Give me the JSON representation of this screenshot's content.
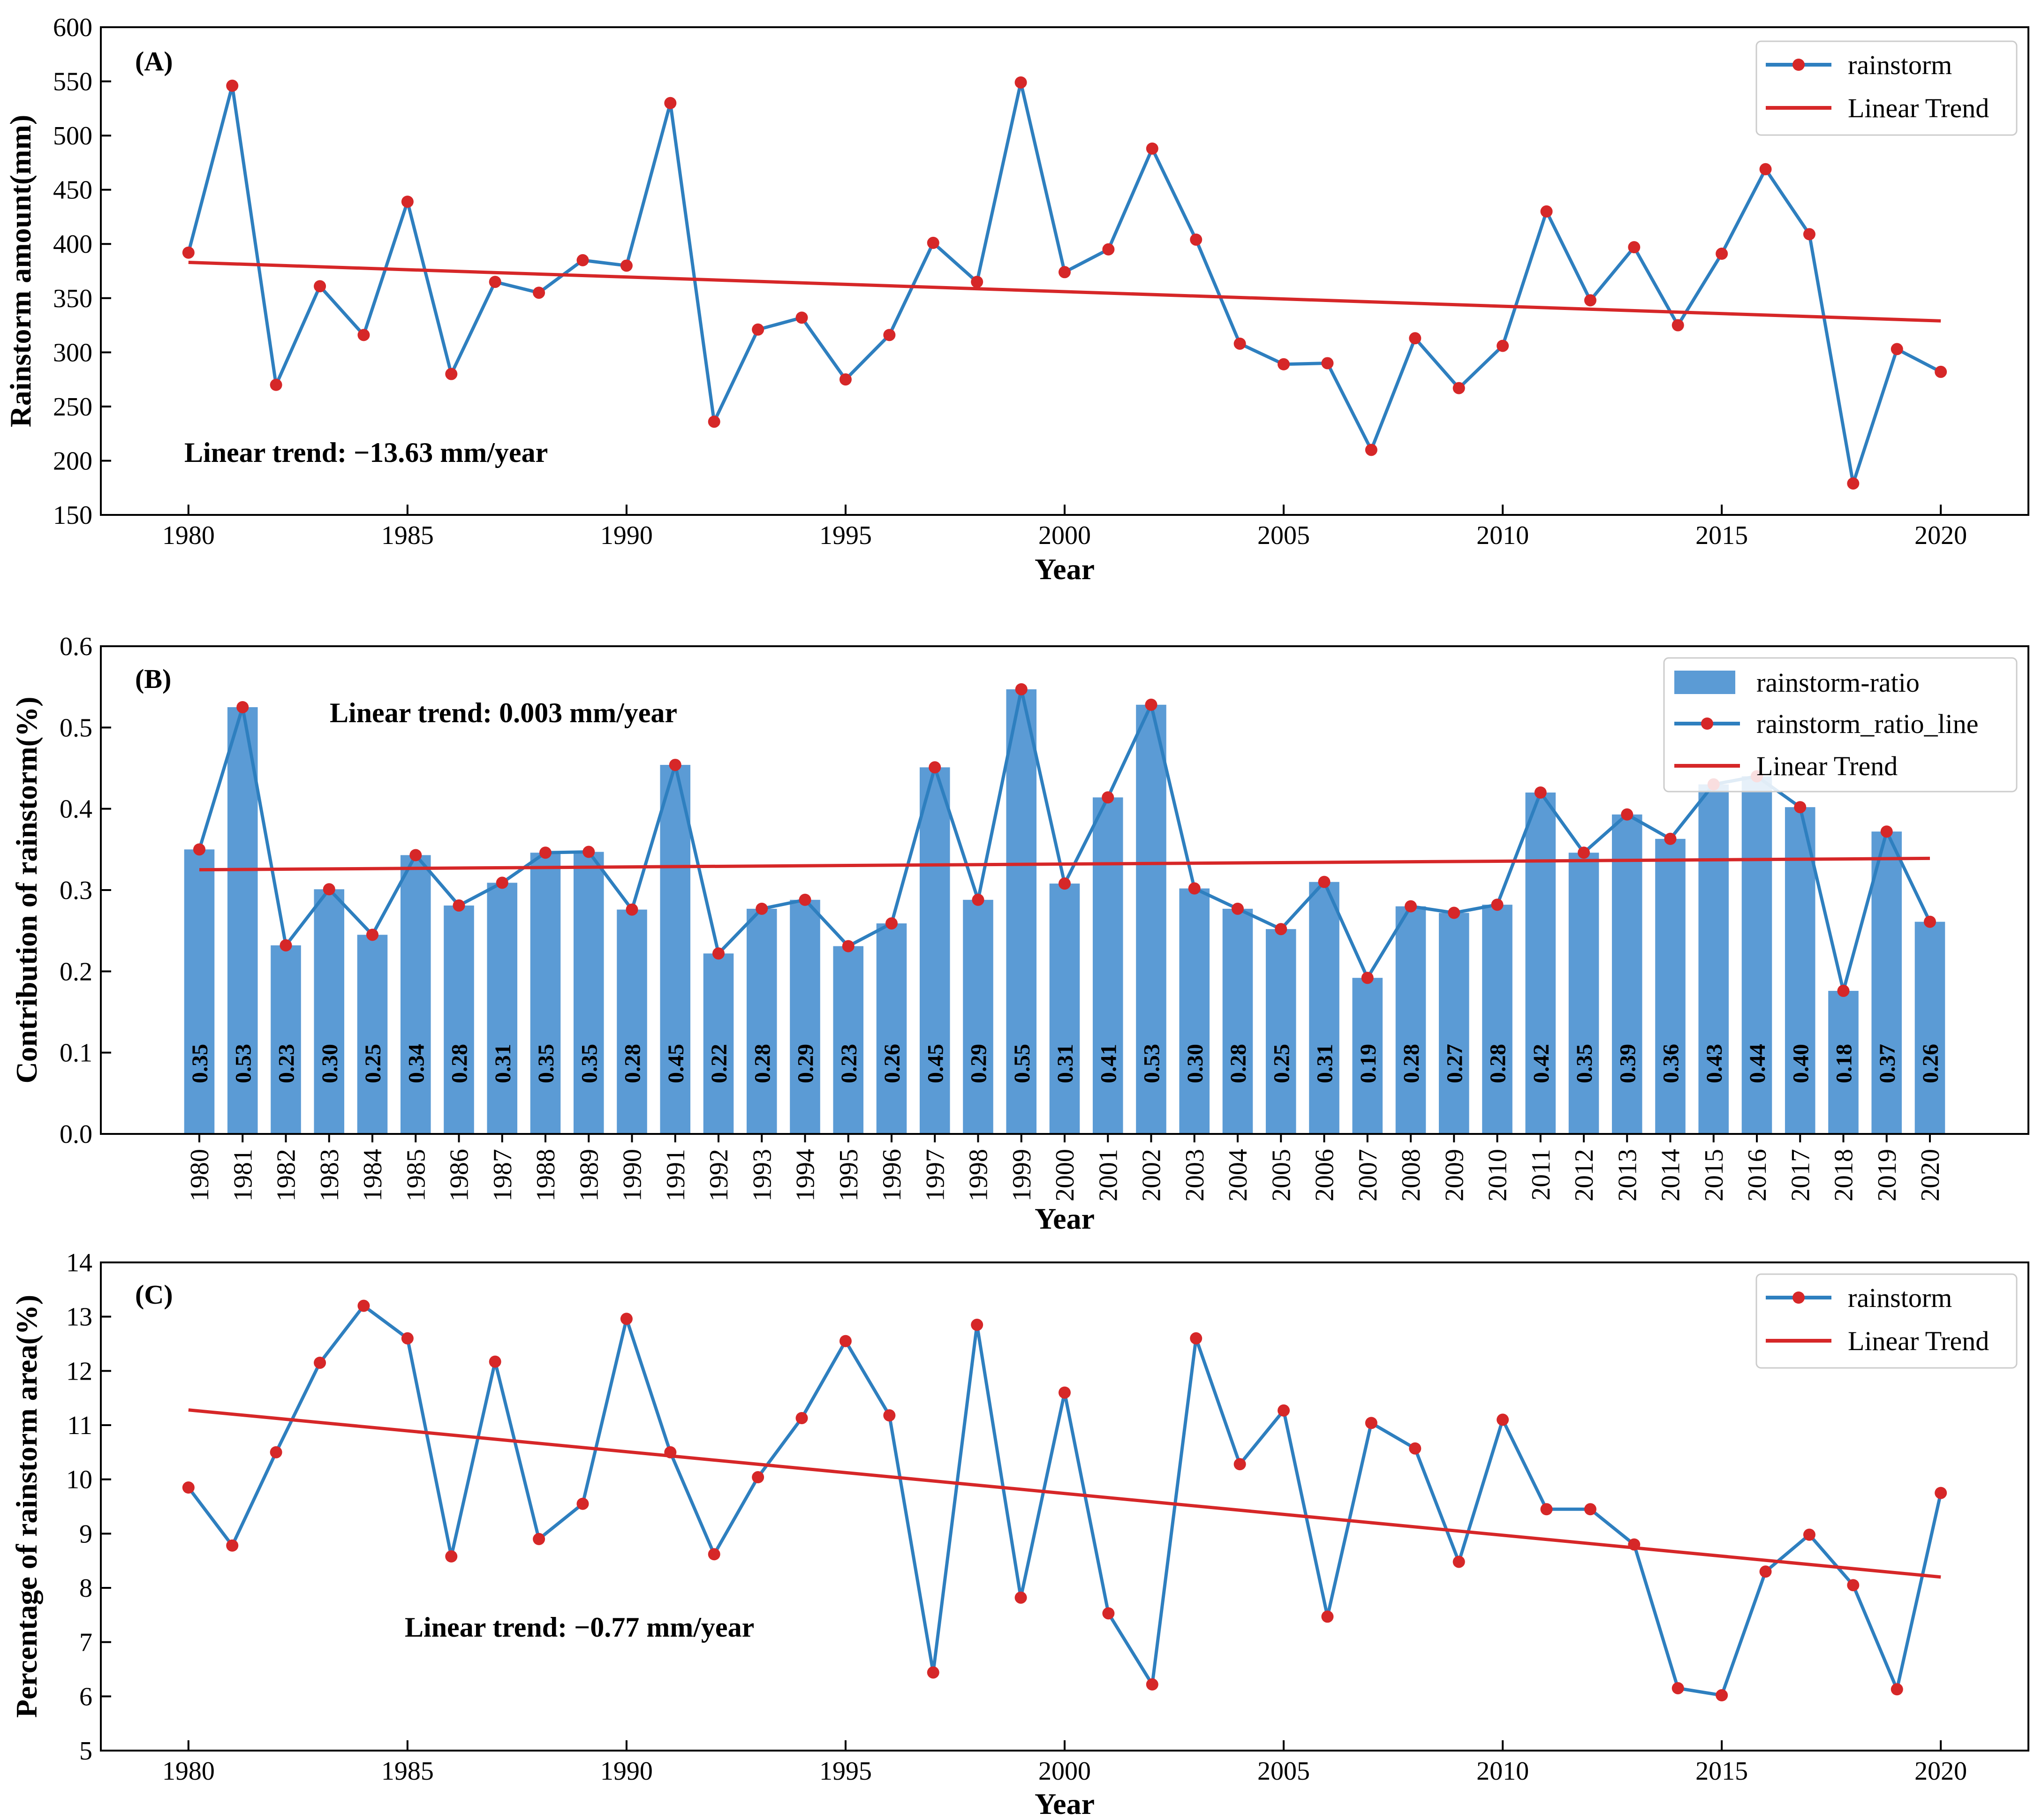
{
  "colors": {
    "series_line": "#2e7fbf",
    "marker": "#d62728",
    "trend": "#d62728",
    "bar": "#5b9bd5"
  },
  "chart_data": [
    {
      "id": "A",
      "type": "line",
      "panel_label": "(A)",
      "xlabel": "Year",
      "ylabel": "Rainstorm amount(mm)",
      "xlim": [
        1978,
        2022
      ],
      "ylim": [
        150,
        600
      ],
      "xticks": [
        1980,
        1985,
        1990,
        1995,
        2000,
        2005,
        2010,
        2015,
        2020
      ],
      "yticks": [
        150,
        200,
        250,
        300,
        350,
        400,
        450,
        500,
        550,
        600
      ],
      "x": [
        1980,
        1981,
        1982,
        1983,
        1984,
        1985,
        1986,
        1987,
        1988,
        1989,
        1990,
        1991,
        1992,
        1993,
        1994,
        1995,
        1996,
        1997,
        1998,
        1999,
        2000,
        2001,
        2002,
        2003,
        2004,
        2005,
        2006,
        2007,
        2008,
        2009,
        2010,
        2011,
        2012,
        2013,
        2014,
        2015,
        2016,
        2017,
        2018,
        2019,
        2020
      ],
      "series": [
        {
          "name": "rainstorm",
          "values": [
            392,
            546,
            270,
            361,
            316,
            439,
            280,
            365,
            355,
            385,
            380,
            530,
            236,
            321,
            332,
            275,
            316,
            401,
            365,
            549,
            374,
            395,
            488,
            404,
            308,
            289,
            290,
            210,
            313,
            267,
            306,
            430,
            348,
            397,
            325,
            391,
            469,
            409,
            179,
            303,
            282
          ]
        }
      ],
      "trend": {
        "name": "Linear Trend",
        "y_start": 383,
        "y_end": 329
      },
      "annotation": "Linear trend: −13.63 mm/year",
      "legend": [
        "rainstorm",
        "Linear Trend"
      ],
      "legend_loc": "top-right"
    },
    {
      "id": "B",
      "type": "bar",
      "panel_label": "(B)",
      "xlabel": "Year",
      "ylabel": "Contribution of rainstorm(%)",
      "ylim": [
        0.0,
        0.6
      ],
      "yticks": [
        "0.0",
        "0.1",
        "0.2",
        "0.3",
        "0.4",
        "0.5",
        "0.6"
      ],
      "categories": [
        "1980",
        "1981",
        "1982",
        "1983",
        "1984",
        "1985",
        "1986",
        "1987",
        "1988",
        "1989",
        "1990",
        "1991",
        "1992",
        "1993",
        "1994",
        "1995",
        "1996",
        "1997",
        "1998",
        "1999",
        "2000",
        "2001",
        "2002",
        "2003",
        "2004",
        "2005",
        "2006",
        "2007",
        "2008",
        "2009",
        "2010",
        "2011",
        "2012",
        "2013",
        "2014",
        "2015",
        "2016",
        "2017",
        "2018",
        "2019",
        "2020"
      ],
      "values": [
        0.35,
        0.525,
        0.232,
        0.301,
        0.245,
        0.343,
        0.281,
        0.309,
        0.346,
        0.347,
        0.276,
        0.454,
        0.222,
        0.277,
        0.288,
        0.231,
        0.259,
        0.451,
        0.288,
        0.547,
        0.308,
        0.414,
        0.528,
        0.302,
        0.277,
        0.252,
        0.31,
        0.192,
        0.28,
        0.272,
        0.282,
        0.42,
        0.346,
        0.393,
        0.363,
        0.43,
        0.44,
        0.402,
        0.176,
        0.372,
        0.261
      ],
      "bar_labels": [
        "0.35",
        "0.53",
        "0.23",
        "0.30",
        "0.25",
        "0.34",
        "0.28",
        "0.31",
        "0.35",
        "0.35",
        "0.28",
        "0.45",
        "0.22",
        "0.28",
        "0.29",
        "0.23",
        "0.26",
        "0.45",
        "0.29",
        "0.55",
        "0.31",
        "0.41",
        "0.53",
        "0.30",
        "0.28",
        "0.25",
        "0.31",
        "0.19",
        "0.28",
        "0.27",
        "0.28",
        "0.42",
        "0.35",
        "0.39",
        "0.36",
        "0.43",
        "0.44",
        "0.40",
        "0.18",
        "0.37",
        "0.26"
      ],
      "trend": {
        "name": "Linear Trend",
        "y_start": 0.325,
        "y_end": 0.339
      },
      "annotation": "Linear trend: 0.003 mm/year",
      "legend": [
        "rainstorm-ratio",
        "rainstorm_ratio_line",
        "Linear Trend"
      ],
      "legend_loc": "top-right"
    },
    {
      "id": "C",
      "type": "line",
      "panel_label": "(C)",
      "xlabel": "Year",
      "ylabel": "Percentage of rainstorm area(%)",
      "xlim": [
        1978,
        2022
      ],
      "ylim": [
        5,
        14
      ],
      "xticks": [
        1980,
        1985,
        1990,
        1995,
        2000,
        2005,
        2010,
        2015,
        2020
      ],
      "yticks": [
        5,
        6,
        7,
        8,
        9,
        10,
        11,
        12,
        13,
        14
      ],
      "x": [
        1980,
        1981,
        1982,
        1983,
        1984,
        1985,
        1986,
        1987,
        1988,
        1989,
        1990,
        1991,
        1992,
        1993,
        1994,
        1995,
        1996,
        1997,
        1998,
        1999,
        2000,
        2001,
        2002,
        2003,
        2004,
        2005,
        2006,
        2007,
        2008,
        2009,
        2010,
        2011,
        2012,
        2013,
        2014,
        2015,
        2016,
        2017,
        2018,
        2019,
        2020
      ],
      "series": [
        {
          "name": "rainstorm",
          "values": [
            9.85,
            8.78,
            10.5,
            12.15,
            13.2,
            12.6,
            8.58,
            12.17,
            8.9,
            9.55,
            12.96,
            10.5,
            8.62,
            10.04,
            11.13,
            12.55,
            11.18,
            6.44,
            12.85,
            7.82,
            11.6,
            7.53,
            6.22,
            12.6,
            10.28,
            11.27,
            7.47,
            11.04,
            10.57,
            8.48,
            11.1,
            9.45,
            9.45,
            8.8,
            6.15,
            6.02,
            8.3,
            8.98,
            8.05,
            6.13,
            9.75
          ]
        }
      ],
      "trend": {
        "name": "Linear Trend",
        "y_start": 11.28,
        "y_end": 8.2
      },
      "annotation": "Linear trend: −0.77 mm/year",
      "legend": [
        "rainstorm",
        "Linear Trend"
      ],
      "legend_loc": "top-right"
    }
  ]
}
